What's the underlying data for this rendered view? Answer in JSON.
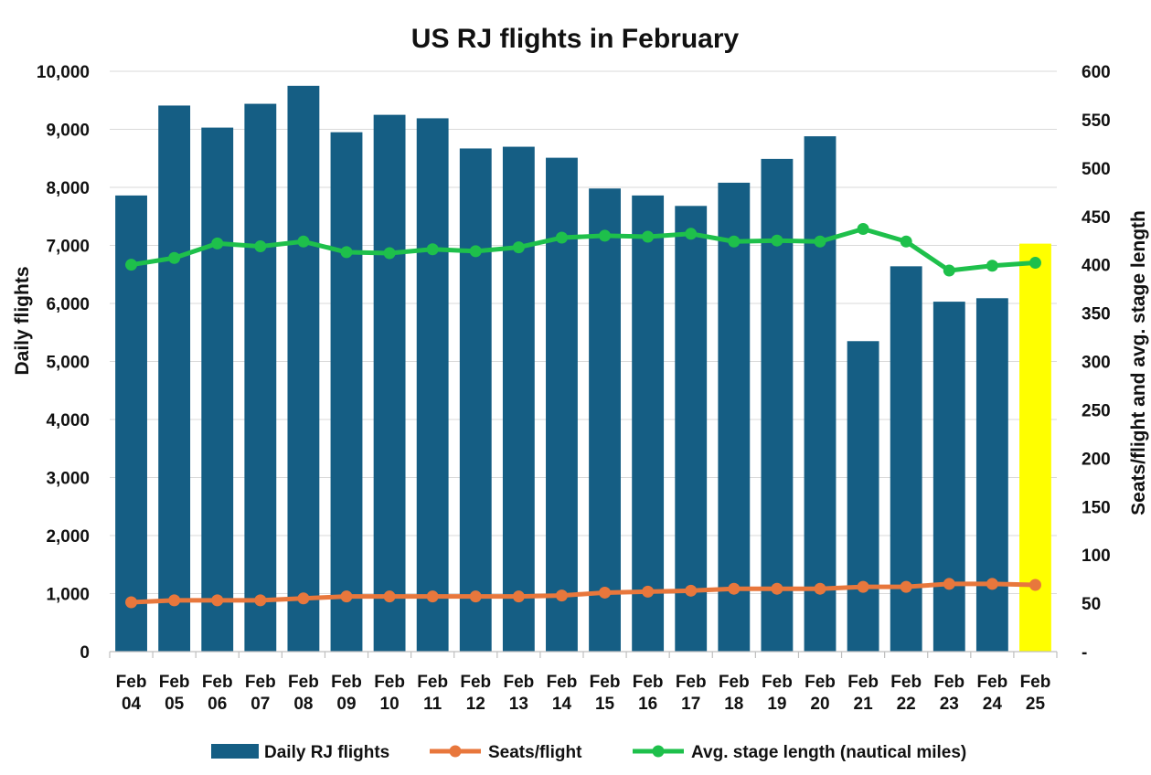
{
  "chart_data": {
    "type": "bar",
    "title": "US RJ flights in February",
    "categories": [
      [
        "Feb",
        "04"
      ],
      [
        "Feb",
        "05"
      ],
      [
        "Feb",
        "06"
      ],
      [
        "Feb",
        "07"
      ],
      [
        "Feb",
        "08"
      ],
      [
        "Feb",
        "09"
      ],
      [
        "Feb",
        "10"
      ],
      [
        "Feb",
        "11"
      ],
      [
        "Feb",
        "12"
      ],
      [
        "Feb",
        "13"
      ],
      [
        "Feb",
        "14"
      ],
      [
        "Feb",
        "15"
      ],
      [
        "Feb",
        "16"
      ],
      [
        "Feb",
        "17"
      ],
      [
        "Feb",
        "18"
      ],
      [
        "Feb",
        "19"
      ],
      [
        "Feb",
        "20"
      ],
      [
        "Feb",
        "21"
      ],
      [
        "Feb",
        "22"
      ],
      [
        "Feb",
        "23"
      ],
      [
        "Feb",
        "24"
      ],
      [
        "Feb",
        "25"
      ]
    ],
    "ylabel": "Daily flights",
    "y2label": "Seats/flight and avg. stage length",
    "ylim": [
      0,
      10000
    ],
    "y2lim": [
      0,
      600
    ],
    "yticks": [
      "0",
      "1,000",
      "2,000",
      "3,000",
      "4,000",
      "5,000",
      "6,000",
      "7,000",
      "8,000",
      "9,000",
      "10,000"
    ],
    "y2ticks": [
      "-",
      "50",
      "100",
      "150",
      "200",
      "250",
      "300",
      "350",
      "400",
      "450",
      "500",
      "550",
      "600"
    ],
    "grid": true,
    "legend_position": "bottom",
    "highlight_index": 21,
    "series": [
      {
        "name": "Daily RJ flights",
        "kind": "bar",
        "axis": "left",
        "color": "#155e84",
        "values": [
          7860,
          9410,
          9030,
          9440,
          9750,
          8950,
          9250,
          9190,
          8670,
          8700,
          8510,
          7980,
          7860,
          7680,
          8080,
          8490,
          8880,
          5350,
          6640,
          6030,
          6090,
          7030
        ]
      },
      {
        "name": "Seats/flight",
        "kind": "line",
        "axis": "right",
        "color": "#e8773c",
        "values": [
          51,
          53,
          53,
          53,
          55,
          57,
          57,
          57,
          57,
          57,
          58,
          61,
          62,
          63,
          65,
          65,
          65,
          67,
          67,
          70,
          70,
          69
        ]
      },
      {
        "name": "Avg. stage length (nautical miles)",
        "kind": "line",
        "axis": "right",
        "color": "#1ec04b",
        "values": [
          400,
          407,
          422,
          419,
          424,
          413,
          412,
          416,
          414,
          418,
          428,
          430,
          429,
          432,
          424,
          425,
          424,
          437,
          424,
          394,
          399,
          402
        ]
      }
    ],
    "colors": {
      "highlight_bar": "#ffff00",
      "grid": "#d9d9d9",
      "axis": "#bfbfbf"
    }
  }
}
